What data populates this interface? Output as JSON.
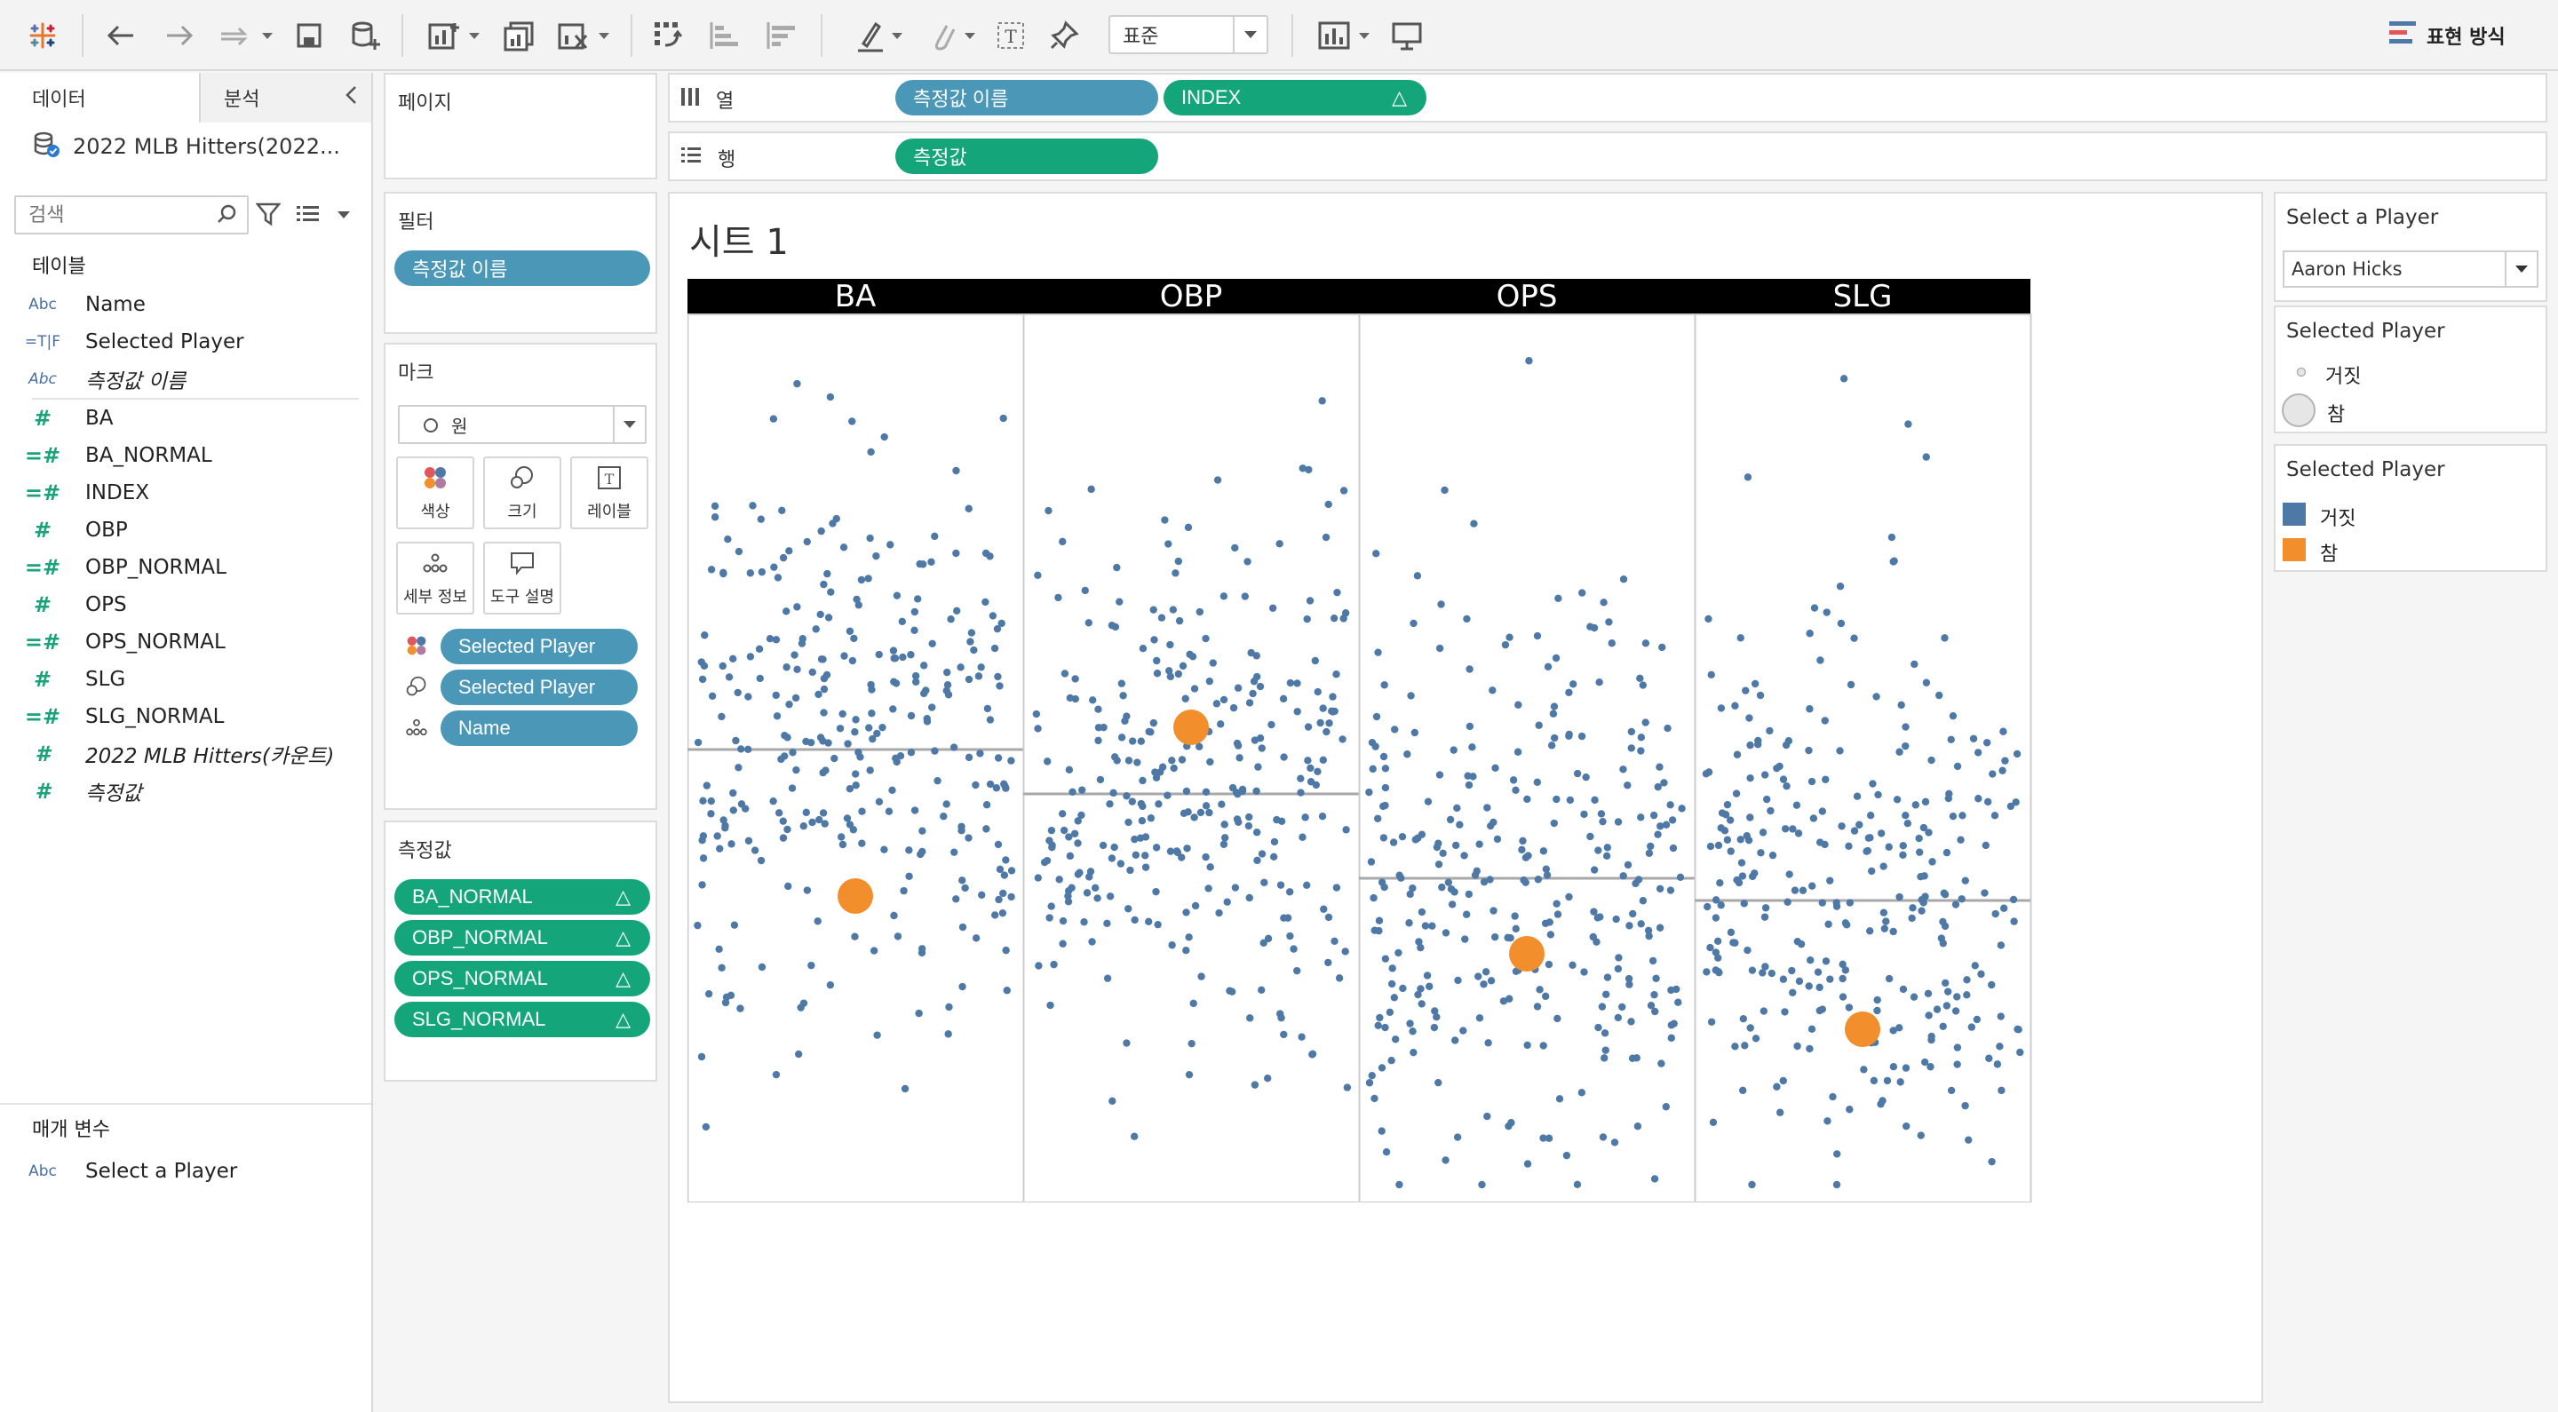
{
  "toolbar": {
    "zoom_value": "표준",
    "show_me_label": "표현 방식",
    "icons": [
      "tableau-logo-icon",
      "undo-icon",
      "redo-icon",
      "replay-icon",
      "save-icon",
      "new-datasource-icon",
      "new-worksheet-icon",
      "duplicate-sheet-icon",
      "clear-sheet-icon",
      "swap-icon",
      "sort-ascending-icon",
      "sort-descending-icon",
      "highlight-icon",
      "group-icon",
      "label-icon",
      "pin-icon",
      "show-cards-icon",
      "presentation-icon"
    ]
  },
  "data_pane": {
    "tab_data": "데이터",
    "tab_analysis": "분석",
    "datasource_name": "2022 MLB Hitters(2022...",
    "search_placeholder": "검색",
    "tables_title": "테이블",
    "fields": [
      {
        "type": "Abc",
        "name": "Name"
      },
      {
        "type": "=T|F",
        "name": "Selected Player"
      },
      {
        "type": "Abc",
        "name": "측정값 이름"
      },
      {
        "type": "#",
        "name": "BA"
      },
      {
        "type": "=#",
        "name": "BA_NORMAL"
      },
      {
        "type": "=#",
        "name": "INDEX"
      },
      {
        "type": "#",
        "name": "OBP"
      },
      {
        "type": "=#",
        "name": "OBP_NORMAL"
      },
      {
        "type": "#",
        "name": "OPS"
      },
      {
        "type": "=#",
        "name": "OPS_NORMAL"
      },
      {
        "type": "#",
        "name": "SLG"
      },
      {
        "type": "=#",
        "name": "SLG_NORMAL"
      },
      {
        "type": "#",
        "name": "2022 MLB Hitters(카운트)"
      },
      {
        "type": "#",
        "name": "측정값"
      }
    ],
    "params_title": "매개 변수",
    "params": [
      {
        "type": "Abc",
        "name": "Select a Player"
      }
    ]
  },
  "cards": {
    "pages_title": "페이지",
    "filters_title": "필터",
    "filter_pill": "측정값 이름",
    "marks_title": "마크",
    "mark_type": "원",
    "mark_buttons": {
      "color": "색상",
      "size": "크기",
      "label": "레이블",
      "detail": "세부 정보",
      "tooltip": "도구 설명"
    },
    "mark_pills": [
      "Selected Player",
      "Selected Player",
      "Name"
    ],
    "measures_title": "측정값",
    "measure_pills": [
      "BA_NORMAL",
      "OBP_NORMAL",
      "OPS_NORMAL",
      "SLG_NORMAL"
    ]
  },
  "shelves": {
    "columns_label": "열",
    "rows_label": "행",
    "columns_pills": [
      "측정값 이름",
      "INDEX"
    ],
    "rows_pills": [
      "측정값"
    ]
  },
  "view": {
    "sheet_title": "시트 1"
  },
  "legends": {
    "param_title": "Select a Player",
    "param_value": "Aaron Hicks",
    "size_title": "Selected Player",
    "size_items": [
      "거짓",
      "참"
    ],
    "color_title": "Selected Player",
    "color_items": [
      {
        "label": "거짓",
        "color": "#4e79a7"
      },
      {
        "label": "참",
        "color": "#f28e2b"
      }
    ]
  },
  "chart_data": {
    "type": "scatter",
    "panels": [
      "BA",
      "OBP",
      "OPS",
      "SLG"
    ],
    "ylim": [
      0,
      1
    ],
    "point_color_false": "#4e79a7",
    "point_color_true": "#f28e2b",
    "reference_lines": [
      0.49,
      0.54,
      0.635,
      0.66
    ],
    "selected_player": "Aaron Hicks",
    "selected_points": [
      {
        "panel": "BA",
        "x": 0.5,
        "y": 0.655
      },
      {
        "panel": "OBP",
        "x": 0.5,
        "y": 0.465
      },
      {
        "panel": "OPS",
        "x": 0.5,
        "y": 0.72
      },
      {
        "panel": "SLG",
        "x": 0.5,
        "y": 0.805
      }
    ],
    "points_per_panel": 300
  }
}
